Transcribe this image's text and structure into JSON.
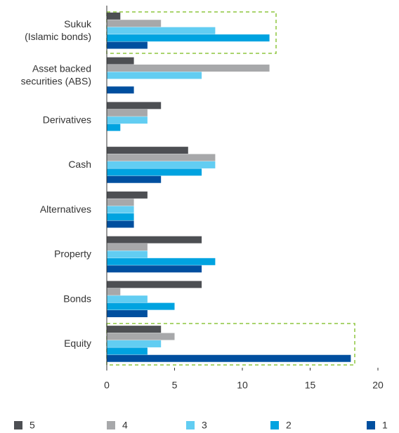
{
  "chart_data": {
    "type": "bar",
    "orientation": "horizontal",
    "categories": [
      [
        "Sukuk",
        "(Islamic bonds)"
      ],
      [
        "Asset backed",
        "securities (ABS)"
      ],
      [
        "Derivatives"
      ],
      [
        "Cash"
      ],
      [
        "Alternatives"
      ],
      [
        "Property"
      ],
      [
        "Bonds"
      ],
      [
        "Equity"
      ]
    ],
    "series": [
      {
        "name": "5",
        "color": "#4d4f53",
        "values": [
          1,
          2,
          4,
          6,
          3,
          7,
          7,
          4
        ]
      },
      {
        "name": "4",
        "color": "#a7a8aa",
        "values": [
          4,
          12,
          3,
          8,
          2,
          3,
          1,
          5
        ]
      },
      {
        "name": "3",
        "color": "#62cdf2",
        "values": [
          8,
          7,
          3,
          8,
          2,
          3,
          3,
          4
        ]
      },
      {
        "name": "2",
        "color": "#00a3e0",
        "values": [
          12,
          0,
          1,
          7,
          2,
          8,
          5,
          3
        ]
      },
      {
        "name": "1",
        "color": "#004f9f",
        "values": [
          3,
          2,
          0,
          4,
          2,
          7,
          3,
          18
        ]
      }
    ],
    "xlim": [
      0,
      20
    ],
    "xticks": [
      0,
      5,
      10,
      15,
      20
    ],
    "grid": false,
    "legend": "bottom"
  }
}
